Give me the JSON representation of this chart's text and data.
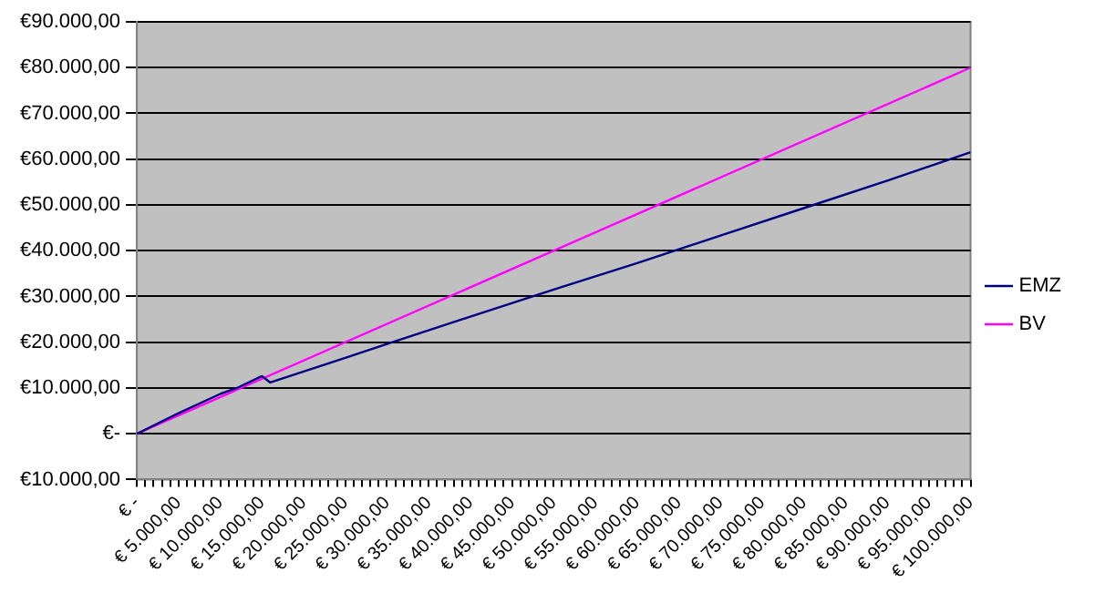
{
  "chart_data": {
    "type": "line",
    "legend": "right",
    "grid": "y",
    "marker": "none",
    "line_style": "solid",
    "xlim": [
      0,
      100000
    ],
    "ylim": [
      -10000,
      90000
    ],
    "yticks": [
      {
        "value": -10000,
        "label": "€10.000,00"
      },
      {
        "value": 0,
        "label": "€-"
      },
      {
        "value": 10000,
        "label": "€10.000,00"
      },
      {
        "value": 20000,
        "label": "€20.000,00"
      },
      {
        "value": 30000,
        "label": "€30.000,00"
      },
      {
        "value": 40000,
        "label": "€40.000,00"
      },
      {
        "value": 50000,
        "label": "€50.000,00"
      },
      {
        "value": 60000,
        "label": "€60.000,00"
      },
      {
        "value": 70000,
        "label": "€70.000,00"
      },
      {
        "value": 80000,
        "label": "€80.000,00"
      },
      {
        "value": 90000,
        "label": "€90.000,00"
      }
    ],
    "xticks": [
      {
        "value": 0,
        "label": "€ -"
      },
      {
        "value": 1000,
        "label": null
      },
      {
        "value": 2000,
        "label": null
      },
      {
        "value": 3000,
        "label": null
      },
      {
        "value": 4000,
        "label": null
      },
      {
        "value": 5000,
        "label": "€ 5.000,00"
      },
      {
        "value": 6000,
        "label": null
      },
      {
        "value": 7000,
        "label": null
      },
      {
        "value": 8000,
        "label": null
      },
      {
        "value": 9000,
        "label": null
      },
      {
        "value": 10000,
        "label": "€ 10.000,00"
      },
      {
        "value": 11000,
        "label": null
      },
      {
        "value": 12000,
        "label": null
      },
      {
        "value": 13000,
        "label": null
      },
      {
        "value": 14000,
        "label": null
      },
      {
        "value": 15000,
        "label": "€ 15.000,00"
      },
      {
        "value": 16000,
        "label": null
      },
      {
        "value": 17000,
        "label": null
      },
      {
        "value": 18000,
        "label": null
      },
      {
        "value": 19000,
        "label": null
      },
      {
        "value": 20000,
        "label": "€ 20.000,00"
      },
      {
        "value": 21000,
        "label": null
      },
      {
        "value": 22000,
        "label": null
      },
      {
        "value": 23000,
        "label": null
      },
      {
        "value": 24000,
        "label": null
      },
      {
        "value": 25000,
        "label": "€ 25.000,00"
      },
      {
        "value": 26000,
        "label": null
      },
      {
        "value": 27000,
        "label": null
      },
      {
        "value": 28000,
        "label": null
      },
      {
        "value": 29000,
        "label": null
      },
      {
        "value": 30000,
        "label": "€ 30.000,00"
      },
      {
        "value": 31000,
        "label": null
      },
      {
        "value": 32000,
        "label": null
      },
      {
        "value": 33000,
        "label": null
      },
      {
        "value": 34000,
        "label": null
      },
      {
        "value": 35000,
        "label": "€ 35.000,00"
      },
      {
        "value": 36000,
        "label": null
      },
      {
        "value": 37000,
        "label": null
      },
      {
        "value": 38000,
        "label": null
      },
      {
        "value": 39000,
        "label": null
      },
      {
        "value": 40000,
        "label": "€ 40.000,00"
      },
      {
        "value": 41000,
        "label": null
      },
      {
        "value": 42000,
        "label": null
      },
      {
        "value": 43000,
        "label": null
      },
      {
        "value": 44000,
        "label": null
      },
      {
        "value": 45000,
        "label": "€ 45.000,00"
      },
      {
        "value": 46000,
        "label": null
      },
      {
        "value": 47000,
        "label": null
      },
      {
        "value": 48000,
        "label": null
      },
      {
        "value": 49000,
        "label": null
      },
      {
        "value": 50000,
        "label": "€ 50.000,00"
      },
      {
        "value": 51000,
        "label": null
      },
      {
        "value": 52000,
        "label": null
      },
      {
        "value": 53000,
        "label": null
      },
      {
        "value": 54000,
        "label": null
      },
      {
        "value": 55000,
        "label": "€ 55.000,00"
      },
      {
        "value": 56000,
        "label": null
      },
      {
        "value": 57000,
        "label": null
      },
      {
        "value": 58000,
        "label": null
      },
      {
        "value": 59000,
        "label": null
      },
      {
        "value": 60000,
        "label": "€ 60.000,00"
      },
      {
        "value": 61000,
        "label": null
      },
      {
        "value": 62000,
        "label": null
      },
      {
        "value": 63000,
        "label": null
      },
      {
        "value": 64000,
        "label": null
      },
      {
        "value": 65000,
        "label": "€ 65.000,00"
      },
      {
        "value": 66000,
        "label": null
      },
      {
        "value": 67000,
        "label": null
      },
      {
        "value": 68000,
        "label": null
      },
      {
        "value": 69000,
        "label": null
      },
      {
        "value": 70000,
        "label": "€ 70.000,00"
      },
      {
        "value": 71000,
        "label": null
      },
      {
        "value": 72000,
        "label": null
      },
      {
        "value": 73000,
        "label": null
      },
      {
        "value": 74000,
        "label": null
      },
      {
        "value": 75000,
        "label": "€ 75.000,00"
      },
      {
        "value": 76000,
        "label": null
      },
      {
        "value": 77000,
        "label": null
      },
      {
        "value": 78000,
        "label": null
      },
      {
        "value": 79000,
        "label": null
      },
      {
        "value": 80000,
        "label": "€ 80.000,00"
      },
      {
        "value": 81000,
        "label": null
      },
      {
        "value": 82000,
        "label": null
      },
      {
        "value": 83000,
        "label": null
      },
      {
        "value": 84000,
        "label": null
      },
      {
        "value": 85000,
        "label": "€ 85.000,00"
      },
      {
        "value": 86000,
        "label": null
      },
      {
        "value": 87000,
        "label": null
      },
      {
        "value": 88000,
        "label": null
      },
      {
        "value": 89000,
        "label": null
      },
      {
        "value": 90000,
        "label": "€ 90.000,00"
      },
      {
        "value": 91000,
        "label": null
      },
      {
        "value": 92000,
        "label": null
      },
      {
        "value": 93000,
        "label": null
      },
      {
        "value": 94000,
        "label": null
      },
      {
        "value": 95000,
        "label": "€ 95.000,00"
      },
      {
        "value": 96000,
        "label": null
      },
      {
        "value": 97000,
        "label": null
      },
      {
        "value": 98000,
        "label": null
      },
      {
        "value": 99000,
        "label": null
      },
      {
        "value": 100000,
        "label": "€ 100.000,00"
      }
    ],
    "series": [
      {
        "name": "EMZ",
        "color": "#000080",
        "x": [
          0,
          5000,
          10000,
          12000,
          15000,
          16000,
          20000,
          25000,
          30000,
          40000,
          50000,
          60000,
          70000,
          80000,
          90000,
          100000
        ],
        "values": [
          0,
          4500,
          8700,
          10000,
          12600,
          11200,
          13600,
          16600,
          19600,
          25600,
          31500,
          37300,
          43300,
          49300,
          55300,
          61500
        ]
      },
      {
        "name": "BV",
        "color": "#ff00ff",
        "x": [
          0,
          100000
        ],
        "values": [
          0,
          80000
        ]
      }
    ]
  }
}
